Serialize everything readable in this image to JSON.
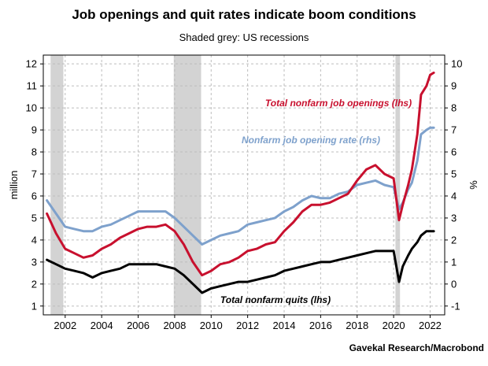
{
  "chart_data": {
    "type": "line",
    "title": "Job openings and quit rates indicate boom conditions",
    "subtitle": "Shaded grey: US recessions",
    "ylabel": "million",
    "y2label": "%",
    "source": "Gavekal Research/Macrobond",
    "xlim": [
      2000.8,
      2022.8
    ],
    "ylim": [
      0.6,
      12.4
    ],
    "y2lim": [
      -1.4,
      10.4
    ],
    "x_ticks": [
      "2002",
      "2004",
      "2006",
      "2008",
      "2010",
      "2012",
      "2014",
      "2016",
      "2018",
      "2020",
      "2022"
    ],
    "y_ticks": [
      "1",
      "2",
      "3",
      "4",
      "5",
      "6",
      "7",
      "8",
      "9",
      "10",
      "11",
      "12"
    ],
    "y2_ticks": [
      "-1",
      "0",
      "1",
      "2",
      "3",
      "4",
      "5",
      "6",
      "7",
      "8",
      "9",
      "10"
    ],
    "grid": true,
    "recessions": [
      [
        2001.2,
        2001.9
      ],
      [
        2007.95,
        2009.45
      ],
      [
        2020.1,
        2020.35
      ]
    ],
    "series": [
      {
        "name": "Total nonfarm job openings (lhs)",
        "axis": "left",
        "color": "#c8102e",
        "x": [
          2001.0,
          2001.5,
          2002.0,
          2002.5,
          2003.0,
          2003.5,
          2004.0,
          2004.5,
          2005.0,
          2005.5,
          2006.0,
          2006.5,
          2007.0,
          2007.5,
          2008.0,
          2008.5,
          2009.0,
          2009.5,
          2010.0,
          2010.5,
          2011.0,
          2011.5,
          2012.0,
          2012.5,
          2013.0,
          2013.5,
          2014.0,
          2014.5,
          2015.0,
          2015.5,
          2016.0,
          2016.5,
          2017.0,
          2017.5,
          2018.0,
          2018.5,
          2019.0,
          2019.5,
          2020.0,
          2020.3,
          2020.5,
          2020.8,
          2021.0,
          2021.3,
          2021.5,
          2021.8,
          2022.0,
          2022.2
        ],
        "values": [
          5.2,
          4.3,
          3.6,
          3.4,
          3.2,
          3.3,
          3.6,
          3.8,
          4.1,
          4.3,
          4.5,
          4.6,
          4.6,
          4.7,
          4.4,
          3.8,
          3.0,
          2.4,
          2.6,
          2.9,
          3.0,
          3.2,
          3.5,
          3.6,
          3.8,
          3.9,
          4.4,
          4.8,
          5.3,
          5.6,
          5.6,
          5.7,
          5.9,
          6.1,
          6.7,
          7.2,
          7.4,
          7.0,
          6.8,
          4.9,
          5.6,
          6.5,
          7.2,
          8.8,
          10.6,
          11.0,
          11.5,
          11.6
        ]
      },
      {
        "name": "Nonfarm job opening rate (rhs)",
        "axis": "right",
        "color": "#7ea1cc",
        "x": [
          2001.0,
          2001.5,
          2002.0,
          2002.5,
          2003.0,
          2003.5,
          2004.0,
          2004.5,
          2005.0,
          2005.5,
          2006.0,
          2006.5,
          2007.0,
          2007.5,
          2008.0,
          2008.5,
          2009.0,
          2009.5,
          2010.0,
          2010.5,
          2011.0,
          2011.5,
          2012.0,
          2012.5,
          2013.0,
          2013.5,
          2014.0,
          2014.5,
          2015.0,
          2015.5,
          2016.0,
          2016.5,
          2017.0,
          2017.5,
          2018.0,
          2018.5,
          2019.0,
          2019.5,
          2020.0,
          2020.3,
          2020.5,
          2020.8,
          2021.0,
          2021.3,
          2021.5,
          2021.8,
          2022.0,
          2022.2
        ],
        "values": [
          3.8,
          3.2,
          2.6,
          2.5,
          2.4,
          2.4,
          2.6,
          2.7,
          2.9,
          3.1,
          3.3,
          3.3,
          3.3,
          3.3,
          3.0,
          2.6,
          2.2,
          1.8,
          2.0,
          2.2,
          2.3,
          2.4,
          2.7,
          2.8,
          2.9,
          3.0,
          3.3,
          3.5,
          3.8,
          4.0,
          3.9,
          3.9,
          4.1,
          4.2,
          4.5,
          4.6,
          4.7,
          4.5,
          4.4,
          3.4,
          3.7,
          4.3,
          4.6,
          5.6,
          6.8,
          7.0,
          7.1,
          7.1
        ]
      },
      {
        "name": "Total nonfarm quits (lhs)",
        "axis": "left",
        "color": "#000000",
        "x": [
          2001.0,
          2001.5,
          2002.0,
          2002.5,
          2003.0,
          2003.5,
          2004.0,
          2004.5,
          2005.0,
          2005.5,
          2006.0,
          2006.5,
          2007.0,
          2007.5,
          2008.0,
          2008.5,
          2009.0,
          2009.5,
          2010.0,
          2010.5,
          2011.0,
          2011.5,
          2012.0,
          2012.5,
          2013.0,
          2013.5,
          2014.0,
          2014.5,
          2015.0,
          2015.5,
          2016.0,
          2016.5,
          2017.0,
          2017.5,
          2018.0,
          2018.5,
          2019.0,
          2019.5,
          2020.0,
          2020.3,
          2020.5,
          2020.8,
          2021.0,
          2021.3,
          2021.5,
          2021.8,
          2022.0,
          2022.2
        ],
        "values": [
          3.1,
          2.9,
          2.7,
          2.6,
          2.5,
          2.3,
          2.5,
          2.6,
          2.7,
          2.9,
          2.9,
          2.9,
          2.9,
          2.8,
          2.7,
          2.4,
          2.0,
          1.6,
          1.8,
          1.9,
          2.0,
          2.1,
          2.1,
          2.2,
          2.3,
          2.4,
          2.6,
          2.7,
          2.8,
          2.9,
          3.0,
          3.0,
          3.1,
          3.2,
          3.3,
          3.4,
          3.5,
          3.5,
          3.5,
          2.1,
          2.8,
          3.3,
          3.6,
          3.9,
          4.2,
          4.4,
          4.4,
          4.4
        ]
      }
    ]
  }
}
